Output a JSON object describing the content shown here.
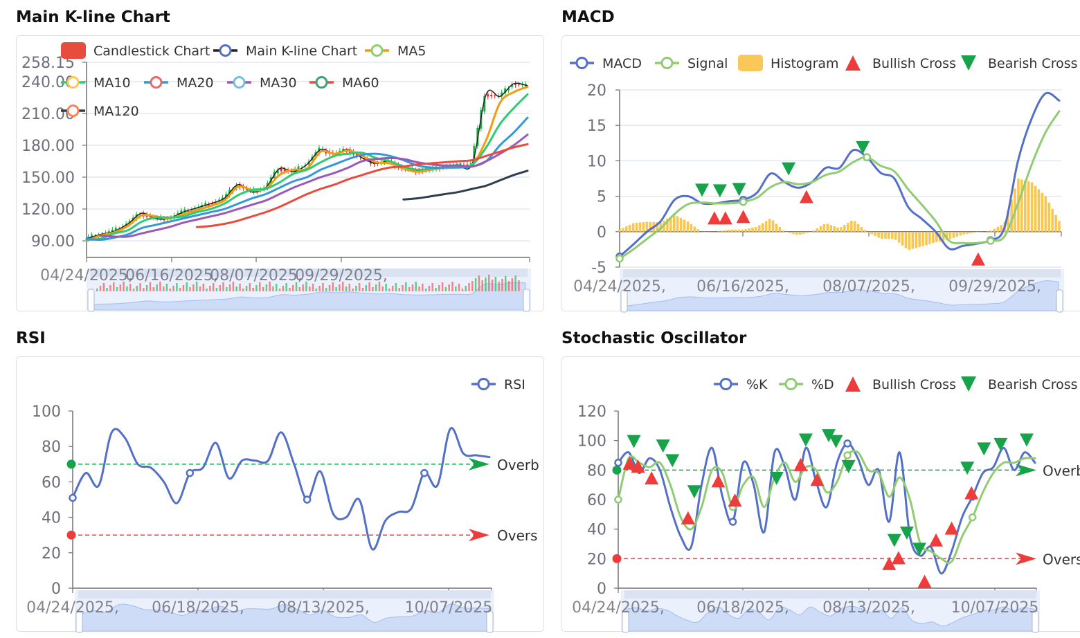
{
  "titles": {
    "main": "Main K-line Chart",
    "macd": "MACD",
    "rsi": "RSI",
    "stoch": "Stochastic Oscillator"
  },
  "chart_data": [
    {
      "id": "main",
      "type": "line",
      "title": "Main K-line Chart",
      "ylim": [
        74.4,
        258.15
      ],
      "yticks": [
        {
          "v": 258.15,
          "label": "258.15"
        },
        {
          "v": 240,
          "label": "240.00"
        },
        {
          "v": 210,
          "label": "210.00"
        },
        {
          "v": 180,
          "label": "180.00"
        },
        {
          "v": 150,
          "label": "150.00"
        },
        {
          "v": 120,
          "label": "120.00"
        },
        {
          "v": 90,
          "label": "90.00"
        }
      ],
      "xticks": [
        "04/24/2025,",
        "06/16/2025,",
        "08/07/2025,",
        "09/29/2025,"
      ],
      "grid": true,
      "legend": [
        {
          "name": "Candlestick Chart",
          "kind": "rect",
          "color": "#e74c3c"
        },
        {
          "name": "Main K-line Chart",
          "kind": "line",
          "line": "#222222",
          "dot": "#5470c6"
        },
        {
          "name": "MA5",
          "kind": "line",
          "line": "#f39c12",
          "dot": "#91cc75"
        },
        {
          "name": "MA10",
          "kind": "line",
          "line": "#2ecc71",
          "dot": "#fac858"
        },
        {
          "name": "MA20",
          "kind": "line",
          "line": "#3498db",
          "dot": "#ee6666"
        },
        {
          "name": "MA30",
          "kind": "line",
          "line": "#9b59b6",
          "dot": "#73c0de"
        },
        {
          "name": "MA60",
          "kind": "line",
          "line": "#e74c3c",
          "dot": "#3ba272"
        },
        {
          "name": "MA120",
          "kind": "line",
          "line": "#2c3e50",
          "dot": "#fc8452"
        }
      ],
      "candle_colors": {
        "up": "#14b143",
        "down": "#ef232a"
      },
      "series": [
        {
          "name": "Main K-line Chart",
          "color": "#222222",
          "width": 1.5,
          "values": [
            92,
            96,
            99,
            106,
            116,
            111,
            111,
            117,
            121,
            125,
            130,
            143,
            136,
            140,
            158,
            155,
            162,
            176,
            172,
            176,
            168,
            163,
            165,
            158,
            156,
            157,
            160,
            161,
            163,
            228,
            226,
            238,
            236
          ]
        },
        {
          "name": "MA5",
          "color": "#f39c12",
          "width": 3,
          "values": [
            90,
            95,
            98,
            104,
            114,
            113,
            111,
            115,
            119,
            123,
            128,
            141,
            138,
            139,
            152,
            157,
            158,
            174,
            172,
            175,
            170,
            164,
            163,
            158,
            155,
            157,
            159,
            160,
            162,
            185,
            220,
            230,
            235
          ]
        },
        {
          "name": "MA10",
          "color": "#2ecc71",
          "width": 3,
          "values": [
            91,
            92,
            97,
            100,
            108,
            112,
            112,
            113,
            117,
            120,
            125,
            133,
            138,
            139,
            145,
            153,
            157,
            164,
            170,
            172,
            173,
            168,
            165,
            160,
            157,
            158,
            159,
            160,
            162,
            178,
            200,
            215,
            228
          ]
        },
        {
          "name": "MA20",
          "color": "#3498db",
          "width": 3,
          "values": [
            92,
            91,
            93,
            96,
            102,
            105,
            108,
            111,
            114,
            117,
            120,
            125,
            130,
            134,
            140,
            146,
            150,
            157,
            162,
            167,
            171,
            172,
            170,
            166,
            161,
            159,
            159,
            159,
            160,
            165,
            180,
            192,
            206
          ]
        },
        {
          "name": "MA30",
          "color": "#9b59b6",
          "width": 3,
          "values": [
            null,
            95,
            94,
            94,
            97,
            100,
            103,
            107,
            110,
            113,
            116,
            120,
            124,
            128,
            134,
            140,
            145,
            150,
            154,
            159,
            165,
            167,
            168,
            167,
            164,
            162,
            161,
            161,
            160,
            165,
            172,
            180,
            190
          ]
        },
        {
          "name": "MA60",
          "color": "#e74c3c",
          "width": 3,
          "values": [
            null,
            null,
            null,
            null,
            null,
            null,
            null,
            null,
            103,
            104,
            106,
            109,
            113,
            117,
            122,
            128,
            134,
            139,
            143,
            148,
            152,
            156,
            159,
            160,
            162,
            163,
            164,
            165,
            166,
            170,
            174,
            178,
            181
          ]
        },
        {
          "name": "MA120",
          "color": "#2c3e50",
          "width": 3,
          "values": [
            null,
            null,
            null,
            null,
            null,
            null,
            null,
            null,
            null,
            null,
            null,
            null,
            null,
            null,
            null,
            null,
            null,
            null,
            null,
            null,
            null,
            null,
            null,
            129,
            130,
            132,
            134,
            136,
            139,
            142,
            147,
            152,
            156
          ]
        }
      ]
    },
    {
      "id": "macd",
      "type": "line",
      "title": "MACD",
      "ylim": [
        -5,
        20
      ],
      "yticks": [
        {
          "v": 20,
          "label": "20"
        },
        {
          "v": 15,
          "label": "15"
        },
        {
          "v": 10,
          "label": "10"
        },
        {
          "v": 5,
          "label": "5"
        },
        {
          "v": 0,
          "label": "0"
        },
        {
          "v": -5,
          "label": "-5"
        }
      ],
      "xticks": [
        "04/24/2025,",
        "06/16/2025,",
        "08/07/2025,",
        "09/29/2025,"
      ],
      "grid": true,
      "legend": [
        {
          "name": "MACD",
          "kind": "line",
          "line": "#5470c6",
          "dot": "#5470c6"
        },
        {
          "name": "Signal",
          "kind": "line",
          "line": "#91cc75",
          "dot": "#91cc75"
        },
        {
          "name": "Histogram",
          "kind": "rect",
          "color": "#fac858"
        },
        {
          "name": "Bullish Cross",
          "kind": "up",
          "color": "#ee3b3b"
        },
        {
          "name": "Bearish Cross",
          "kind": "down",
          "color": "#16a34a"
        }
      ],
      "histogram": {
        "name": "Histogram",
        "color": "#f9c74f",
        "values": [
          0.3,
          1.2,
          1.4,
          1.3,
          2.4,
          1.4,
          -0.1,
          0.0,
          0.3,
          0.3,
          0.7,
          1.9,
          0.0,
          -0.5,
          0.0,
          1.2,
          0.5,
          1.7,
          0.0,
          -1.0,
          -1.0,
          -2.6,
          -2.1,
          -1.5,
          -1.1,
          -0.4,
          -0.1,
          0.1,
          1.2,
          7.5,
          7.0,
          5.0,
          1.5
        ]
      },
      "series": [
        {
          "name": "MACD",
          "color": "#5470c6",
          "width": 3,
          "values": [
            -3.5,
            -1.8,
            0,
            1.5,
            4.5,
            5,
            4.0,
            4.0,
            4.3,
            4.5,
            5.5,
            8.2,
            7.0,
            6.2,
            7.0,
            9.0,
            9.0,
            11.5,
            10.5,
            8.3,
            7.5,
            3.5,
            1.8,
            0,
            -2.4,
            -2.0,
            -1.7,
            -1.2,
            0.5,
            10,
            16,
            19.5,
            18.5
          ]
        },
        {
          "name": "Signal",
          "color": "#91cc75",
          "width": 3,
          "values": [
            -3.8,
            -2.5,
            -1,
            0.5,
            2.5,
            3.9,
            4.1,
            4.0,
            4.0,
            4.2,
            4.8,
            6.3,
            7.0,
            6.7,
            7.0,
            8.0,
            8.5,
            9.8,
            10.5,
            9.3,
            8.5,
            6.0,
            3.8,
            1.5,
            -1.3,
            -1.6,
            -1.6,
            -1.3,
            -0.7,
            4,
            9.5,
            14,
            17
          ]
        }
      ],
      "markers": {
        "bullish": [
          {
            "x": 6.9,
            "v": 1.8
          },
          {
            "x": 7.7,
            "v": 1.8
          },
          {
            "x": 9.0,
            "v": 2.0
          },
          {
            "x": 13.6,
            "v": 4.8
          },
          {
            "x": 26.1,
            "v": -4.0
          }
        ],
        "bearish": [
          {
            "x": 6.0,
            "v": 6.0
          },
          {
            "x": 7.3,
            "v": 5.9
          },
          {
            "x": 8.7,
            "v": 6.1
          },
          {
            "x": 12.3,
            "v": 9.0
          },
          {
            "x": 17.7,
            "v": 12.0
          }
        ]
      }
    },
    {
      "id": "rsi",
      "type": "line",
      "title": "RSI",
      "ylim": [
        0,
        100
      ],
      "yticks": [
        {
          "v": 100,
          "label": "100"
        },
        {
          "v": 80,
          "label": "80"
        },
        {
          "v": 60,
          "label": "60"
        },
        {
          "v": 40,
          "label": "40"
        },
        {
          "v": 20,
          "label": "20"
        },
        {
          "v": 0,
          "label": "0"
        }
      ],
      "xticks": [
        "04/24/2025,",
        "06/18/2025,",
        "08/13/2025,",
        "10/07/2025"
      ],
      "grid": false,
      "legend": [
        {
          "name": "RSI",
          "kind": "line",
          "line": "#5470c6",
          "dot": "#5470c6"
        }
      ],
      "levels": [
        {
          "v": 70,
          "label": "Overb",
          "color": "#16a34a"
        },
        {
          "v": 30,
          "label": "Overs",
          "color": "#ee3b3b"
        }
      ],
      "series": [
        {
          "name": "RSI",
          "color": "#5470c6",
          "width": 3,
          "values": [
            51,
            65,
            58,
            88,
            85,
            70,
            68,
            60,
            48,
            65,
            68,
            82,
            62,
            72,
            72,
            72,
            88,
            70,
            50,
            66,
            42,
            40,
            50,
            22,
            38,
            43,
            45,
            65,
            58,
            90,
            76,
            75,
            74
          ]
        }
      ]
    },
    {
      "id": "stoch",
      "type": "line",
      "title": "Stochastic Oscillator",
      "ylim": [
        0,
        120
      ],
      "yticks": [
        {
          "v": 120,
          "label": "120"
        },
        {
          "v": 100,
          "label": "100"
        },
        {
          "v": 80,
          "label": "80"
        },
        {
          "v": 60,
          "label": "60"
        },
        {
          "v": 40,
          "label": "40"
        },
        {
          "v": 20,
          "label": "20"
        },
        {
          "v": 0,
          "label": "0"
        }
      ],
      "xticks": [
        "04/24/2025,",
        "06/18/2025,",
        "08/13/2025,",
        "10/07/2025"
      ],
      "grid": false,
      "legend": [
        {
          "name": "%K",
          "kind": "line",
          "line": "#5470c6",
          "dot": "#5470c6"
        },
        {
          "name": "%D",
          "kind": "line",
          "line": "#91cc75",
          "dot": "#91cc75"
        },
        {
          "name": "Bullish Cross",
          "kind": "up",
          "color": "#ee3b3b"
        },
        {
          "name": "Bearish Cross",
          "kind": "down",
          "color": "#16a34a"
        }
      ],
      "levels": [
        {
          "v": 80,
          "label": "Overb",
          "color": "#16a34a"
        },
        {
          "v": 20,
          "label": "Overs",
          "color": "#ee3b3b"
        }
      ],
      "series": [
        {
          "name": "%K",
          "color": "#5470c6",
          "width": 3,
          "values": [
            85,
            92,
            78,
            88,
            80,
            55,
            35,
            28,
            70,
            95,
            62,
            45,
            85,
            70,
            38,
            92,
            82,
            60,
            95,
            72,
            55,
            85,
            98,
            88,
            70,
            80,
            45,
            92,
            35,
            22,
            28,
            10,
            25,
            48,
            62,
            78,
            82,
            95,
            80,
            92,
            85
          ]
        },
        {
          "name": "%D",
          "color": "#91cc75",
          "width": 3,
          "values": [
            60,
            88,
            85,
            82,
            85,
            70,
            48,
            40,
            55,
            80,
            78,
            55,
            70,
            75,
            55,
            75,
            85,
            72,
            82,
            80,
            65,
            72,
            90,
            92,
            80,
            78,
            62,
            75,
            60,
            30,
            25,
            20,
            18,
            35,
            48,
            65,
            78,
            85,
            85,
            88,
            88
          ]
        }
      ],
      "markers": {
        "bullish": [
          {
            "x": 1.1,
            "v": 84
          },
          {
            "x": 1.9,
            "v": 82
          },
          {
            "x": 3.2,
            "v": 74
          },
          {
            "x": 6.7,
            "v": 47
          },
          {
            "x": 9.6,
            "v": 72
          },
          {
            "x": 11.2,
            "v": 59
          },
          {
            "x": 17.5,
            "v": 83
          },
          {
            "x": 19.1,
            "v": 73
          },
          {
            "x": 26.0,
            "v": 16
          },
          {
            "x": 26.9,
            "v": 20
          },
          {
            "x": 29.4,
            "v": 4
          },
          {
            "x": 30.5,
            "v": 32
          },
          {
            "x": 32.0,
            "v": 40
          },
          {
            "x": 33.9,
            "v": 64
          }
        ],
        "bearish": [
          {
            "x": 1.5,
            "v": 100
          },
          {
            "x": 4.3,
            "v": 97
          },
          {
            "x": 5.2,
            "v": 87
          },
          {
            "x": 7.3,
            "v": 66
          },
          {
            "x": 15.2,
            "v": 75
          },
          {
            "x": 18.0,
            "v": 101
          },
          {
            "x": 20.2,
            "v": 104
          },
          {
            "x": 20.9,
            "v": 100
          },
          {
            "x": 22.1,
            "v": 83
          },
          {
            "x": 26.5,
            "v": 33
          },
          {
            "x": 27.7,
            "v": 38
          },
          {
            "x": 28.9,
            "v": 27
          },
          {
            "x": 33.5,
            "v": 82
          },
          {
            "x": 35.1,
            "v": 95
          },
          {
            "x": 36.7,
            "v": 98
          },
          {
            "x": 39.2,
            "v": 101
          }
        ]
      }
    }
  ]
}
